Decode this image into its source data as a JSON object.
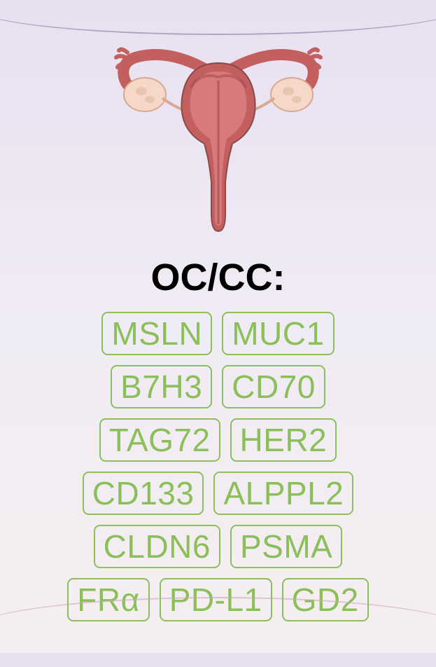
{
  "heading": "OC/CC:",
  "heading_fontsize": 54,
  "heading_color": "#000000",
  "tag_color": "#8bbf5a",
  "tag_border_color": "#8bbf5a",
  "tag_fontsize": 46,
  "organ_colors": {
    "uterus_body": "#c45f60",
    "uterus_highlight": "#d87a7c",
    "uterus_dark": "#a04849",
    "ovary_fill": "#f5d8c8",
    "ovary_detail": "#d8a890",
    "tube_color": "#c45f60",
    "outline": "#8a4a4b"
  },
  "rows": [
    [
      "MSLN",
      "MUC1"
    ],
    [
      "B7H3",
      "CD70"
    ],
    [
      "TAG72",
      "HER2"
    ],
    [
      "CD133",
      "ALPPL2"
    ],
    [
      "CLDN6",
      "PSMA"
    ],
    [
      "FRα",
      "PD-L1",
      "GD2"
    ]
  ],
  "background_gradient": [
    "#e8e0f0",
    "#f0ecf5",
    "#f5eef0"
  ]
}
